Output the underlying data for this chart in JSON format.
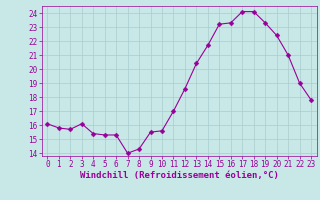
{
  "x": [
    0,
    1,
    2,
    3,
    4,
    5,
    6,
    7,
    8,
    9,
    10,
    11,
    12,
    13,
    14,
    15,
    16,
    17,
    18,
    19,
    20,
    21,
    22,
    23
  ],
  "y": [
    16.1,
    15.8,
    15.7,
    16.1,
    15.4,
    15.3,
    15.3,
    14.0,
    14.3,
    15.5,
    15.6,
    17.0,
    18.6,
    20.4,
    21.7,
    23.2,
    23.3,
    24.1,
    24.1,
    23.3,
    22.4,
    21.0,
    19.0,
    17.8
  ],
  "line_color": "#990099",
  "marker": "D",
  "marker_size": 2.5,
  "bg_color": "#c8e8e8",
  "grid_color": "#aacccc",
  "xlabel": "Windchill (Refroidissement éolien,°C)",
  "xlabel_color": "#990099",
  "tick_color": "#990099",
  "spine_color": "#990099",
  "ylim": [
    13.8,
    24.5
  ],
  "yticks": [
    14,
    15,
    16,
    17,
    18,
    19,
    20,
    21,
    22,
    23,
    24
  ],
  "xlim": [
    -0.5,
    23.5
  ],
  "xticks": [
    0,
    1,
    2,
    3,
    4,
    5,
    6,
    7,
    8,
    9,
    10,
    11,
    12,
    13,
    14,
    15,
    16,
    17,
    18,
    19,
    20,
    21,
    22,
    23
  ],
  "tick_fontsize": 5.5,
  "xlabel_fontsize": 6.5,
  "xlabel_fontweight": "bold"
}
